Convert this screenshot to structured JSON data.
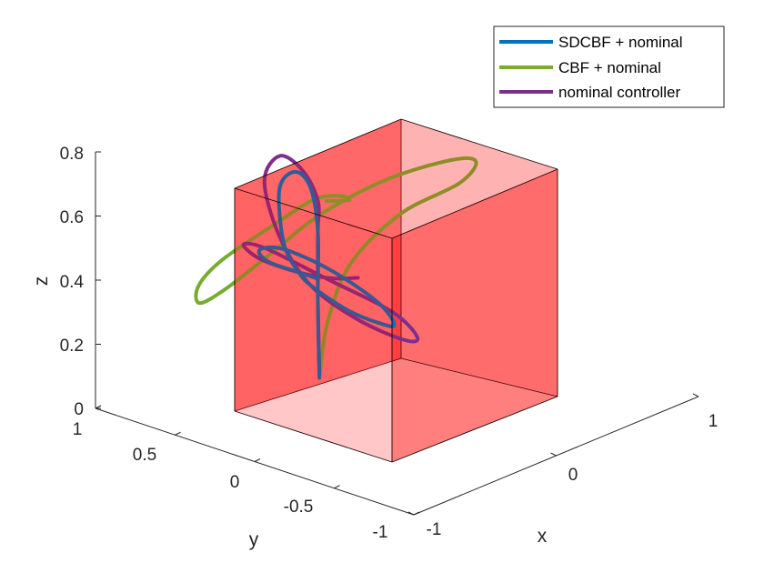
{
  "chart_data": {
    "type": "line3d",
    "xlabel": "x",
    "ylabel": "y",
    "zlabel": "z",
    "xlim": [
      -1,
      1
    ],
    "ylim": [
      -1,
      1
    ],
    "zlim": [
      0,
      0.8
    ],
    "x_ticks": [
      "-1",
      "0",
      "1"
    ],
    "y_ticks": [
      "-1",
      "-0.5",
      "0",
      "0.5",
      "1"
    ],
    "z_ticks": [
      "0",
      "0.2",
      "0.4",
      "0.6",
      "0.8"
    ],
    "legend_position": "top-right",
    "obstacle": {
      "shape": "cube",
      "color": "#ff0000",
      "opacity": 0.5,
      "x": [
        -0.5,
        0.5
      ],
      "y": [
        -0.5,
        0.5
      ],
      "z": [
        0,
        0.8
      ]
    },
    "series": [
      {
        "name": "SDCBF + nominal",
        "color": "#0072bd",
        "points": [
          [
            0.01,
            0.01,
            0.03
          ],
          [
            0.0,
            0.0,
            0.3
          ],
          [
            0.0,
            0.0,
            0.55
          ],
          [
            -0.05,
            -0.05,
            0.68
          ],
          [
            -0.15,
            -0.1,
            0.7
          ],
          [
            -0.25,
            -0.1,
            0.62
          ],
          [
            -0.22,
            -0.05,
            0.45
          ],
          [
            -0.12,
            0.0,
            0.38
          ],
          [
            -0.02,
            0.02,
            0.35
          ],
          [
            0.2,
            0.1,
            0.34
          ],
          [
            0.4,
            0.15,
            0.35
          ],
          [
            0.5,
            0.25,
            0.4
          ],
          [
            0.4,
            0.35,
            0.5
          ],
          [
            0.1,
            0.4,
            0.58
          ],
          [
            -0.2,
            0.4,
            0.6
          ],
          [
            -0.35,
            0.35,
            0.55
          ],
          [
            -0.3,
            0.25,
            0.48
          ],
          [
            -0.1,
            0.1,
            0.42
          ],
          [
            0.0,
            0.0,
            0.38
          ]
        ]
      },
      {
        "name": "CBF + nominal",
        "color": "#77ac30",
        "points": [
          [
            0.01,
            0.01,
            0.03
          ],
          [
            0.06,
            -0.05,
            0.22
          ],
          [
            0.2,
            -0.2,
            0.4
          ],
          [
            0.5,
            -0.5,
            0.52
          ],
          [
            0.85,
            -0.8,
            0.58
          ],
          [
            0.95,
            -0.95,
            0.62
          ],
          [
            0.8,
            -0.95,
            0.6
          ],
          [
            0.4,
            -0.7,
            0.55
          ],
          [
            0.0,
            -0.3,
            0.5
          ],
          [
            -0.3,
            0.1,
            0.45
          ],
          [
            -0.55,
            0.55,
            0.45
          ],
          [
            -0.7,
            0.9,
            0.5
          ],
          [
            -0.7,
            1.0,
            0.6
          ],
          [
            -0.55,
            1.0,
            0.72
          ],
          [
            -0.25,
            0.8,
            0.82
          ],
          [
            0.0,
            0.5,
            0.85
          ],
          [
            0.15,
            0.2,
            0.78
          ],
          [
            0.2,
            0.0,
            0.7
          ],
          [
            0.05,
            -0.05,
            0.65
          ]
        ]
      },
      {
        "name": "nominal controller",
        "color": "#7e2f8e",
        "points": [
          [
            0.01,
            0.01,
            0.05
          ],
          [
            0.0,
            0.0,
            0.3
          ],
          [
            0.0,
            0.0,
            0.55
          ],
          [
            0.0,
            0.0,
            0.66
          ],
          [
            -0.1,
            -0.08,
            0.72
          ],
          [
            -0.25,
            -0.15,
            0.72
          ],
          [
            -0.35,
            -0.18,
            0.6
          ],
          [
            -0.25,
            -0.1,
            0.45
          ],
          [
            -0.05,
            0.0,
            0.35
          ],
          [
            0.25,
            0.1,
            0.32
          ],
          [
            0.55,
            0.18,
            0.33
          ],
          [
            0.65,
            0.3,
            0.4
          ],
          [
            0.5,
            0.45,
            0.52
          ],
          [
            0.1,
            0.55,
            0.6
          ],
          [
            -0.3,
            0.5,
            0.62
          ],
          [
            -0.45,
            0.4,
            0.57
          ],
          [
            -0.35,
            0.25,
            0.48
          ],
          [
            -0.1,
            0.1,
            0.42
          ],
          [
            0.1,
            0.0,
            0.4
          ],
          [
            0.25,
            -0.08,
            0.4
          ]
        ]
      }
    ]
  }
}
